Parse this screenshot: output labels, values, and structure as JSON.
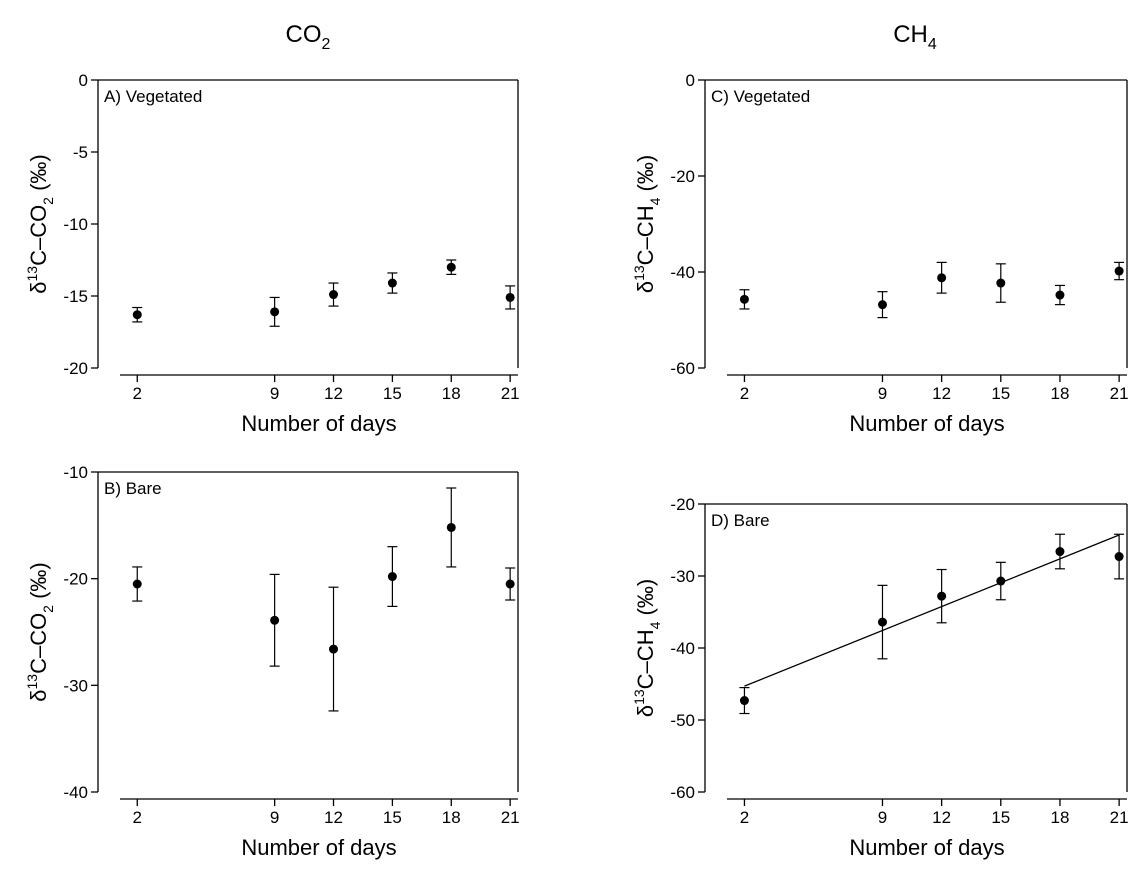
{
  "column_titles": [
    {
      "text": "CO",
      "subscript": "2"
    },
    {
      "text": "CH",
      "subscript": "4"
    }
  ],
  "chart_data": [
    {
      "type": "scatter",
      "panel_label": "A) Vegetated",
      "xlabel": "Number of days",
      "ylabel": {
        "prefix": "δ",
        "superscript": "13",
        "main": "C–CO",
        "subscript": "2",
        "suffix": " (‰)"
      },
      "x": [
        2,
        9,
        12,
        15,
        18,
        21
      ],
      "values": [
        -16.3,
        -16.1,
        -14.9,
        -14.1,
        -13.0,
        -15.1
      ],
      "errors": [
        0.5,
        1.0,
        0.8,
        0.7,
        0.5,
        0.8
      ],
      "xlim": [
        0,
        21.4
      ],
      "xticks": [
        2,
        9,
        12,
        15,
        18,
        21
      ],
      "ylim": [
        -20,
        0
      ],
      "yticks": [
        0,
        -5,
        -10,
        -15,
        -20
      ],
      "color": "#000000"
    },
    {
      "type": "scatter",
      "panel_label": "B) Bare",
      "xlabel": "Number of days",
      "ylabel": {
        "prefix": "δ",
        "superscript": "13",
        "main": "C–CO",
        "subscript": "2",
        "suffix": " (‰)"
      },
      "x": [
        2,
        9,
        12,
        15,
        18,
        21
      ],
      "values": [
        -20.5,
        -23.9,
        -26.6,
        -19.8,
        -15.2,
        -20.5
      ],
      "errors": [
        1.6,
        4.3,
        5.8,
        2.8,
        3.7,
        1.5
      ],
      "xlim": [
        0,
        21.4
      ],
      "xticks": [
        2,
        9,
        12,
        15,
        18,
        21
      ],
      "ylim": [
        -40,
        -10
      ],
      "yticks": [
        -10,
        -20,
        -30,
        -40
      ],
      "color": "#000000"
    },
    {
      "type": "scatter",
      "panel_label": "C) Vegetated",
      "xlabel": "Number of days",
      "ylabel": {
        "prefix": "δ",
        "superscript": "13",
        "main": "C–CH",
        "subscript": "4",
        "suffix": " (‰)"
      },
      "x": [
        2,
        9,
        12,
        15,
        18,
        21
      ],
      "values": [
        -45.7,
        -46.8,
        -41.2,
        -42.3,
        -44.8,
        -39.8
      ],
      "errors": [
        2.0,
        2.7,
        3.2,
        4.0,
        2.0,
        1.8
      ],
      "xlim": [
        0,
        21.4
      ],
      "xticks": [
        2,
        9,
        12,
        15,
        18,
        21
      ],
      "ylim": [
        -60,
        0
      ],
      "yticks": [
        0,
        -20,
        -40,
        -60
      ],
      "color": "#000000"
    },
    {
      "type": "scatter",
      "panel_label": "D) Bare",
      "xlabel": "Number of days",
      "ylabel": {
        "prefix": "δ",
        "superscript": "13",
        "main": "C–CH",
        "subscript": "4",
        "suffix": " (‰)"
      },
      "x": [
        2,
        9,
        12,
        15,
        18,
        21
      ],
      "values": [
        -47.3,
        -36.4,
        -32.8,
        -30.7,
        -26.6,
        -27.3
      ],
      "errors": [
        1.8,
        5.1,
        3.7,
        2.6,
        2.4,
        3.1
      ],
      "trend_line": {
        "x": [
          2,
          21
        ],
        "values": [
          -45.3,
          -24.3
        ]
      },
      "xlim": [
        0,
        21.4
      ],
      "xticks": [
        2,
        9,
        12,
        15,
        18,
        21
      ],
      "ylim": [
        -60,
        -20
      ],
      "yticks": [
        -20,
        -30,
        -40,
        -50,
        -60
      ],
      "color": "#000000"
    }
  ]
}
